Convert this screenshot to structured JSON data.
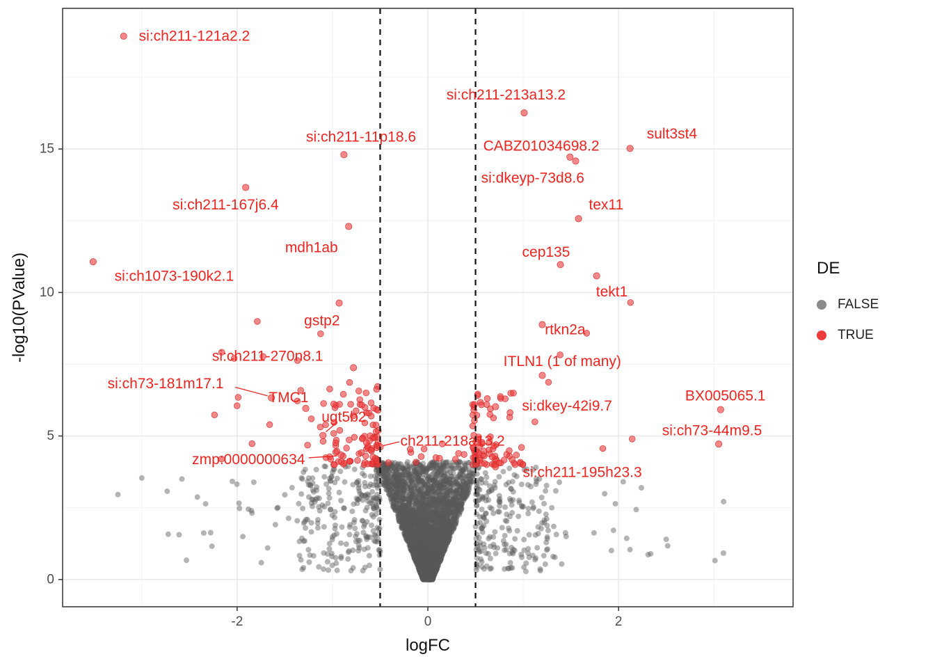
{
  "chart_data": {
    "type": "scatter",
    "subtype": "volcano-plot",
    "title": "",
    "xlabel": "logFC",
    "ylabel": "-log10(PValue)",
    "xlim": [
      -3.83,
      3.83
    ],
    "ylim": [
      -0.95,
      19.9
    ],
    "x_ticks": [
      -2,
      0,
      2
    ],
    "y_ticks": [
      0,
      5,
      10,
      15
    ],
    "grid": {
      "major_x": [
        -2,
        0,
        2
      ],
      "minor_x": [
        -3,
        -1,
        1,
        3
      ],
      "major_y": [
        0,
        5,
        10,
        15
      ],
      "minor_y": [
        2.5,
        7.5,
        12.5,
        17.5
      ]
    },
    "vlines": {
      "values": [
        -0.5,
        0.5
      ],
      "style": "dashed",
      "color": "#111111"
    },
    "legend": {
      "title": "DE",
      "position": "right",
      "entries": [
        {
          "label": "FALSE",
          "color": "#8a8a8a"
        },
        {
          "label": "TRUE",
          "color": "#ee3b3b"
        }
      ]
    },
    "style": {
      "gray_fill": "rgba(88,88,88,0.45)",
      "gray_radius": 4.0,
      "red_fill": "rgba(238,62,62,0.62)",
      "red_stroke": "rgba(205,38,38,0.85)",
      "red_radius": 4.4,
      "label_color": "#ee2420",
      "grid_major": "#e6e6e6",
      "grid_minor": "#f3f3f3",
      "panel_border": "#333333",
      "tick_color": "#333333",
      "tick_label_color": "#4d4d4d"
    },
    "genes": [
      {
        "name": "si:ch211-121a2.2",
        "x": -3.19,
        "y": 18.93,
        "lx": -3.03,
        "ly": 18.93,
        "anchor": "start"
      },
      {
        "name": "si:ch211-213a13.2",
        "x": 1.01,
        "y": 16.26,
        "lx": 0.82,
        "ly": 16.88,
        "anchor": "middle"
      },
      {
        "name": "si:ch211-11p18.6",
        "x": -0.88,
        "y": 14.8,
        "lx": -0.7,
        "ly": 15.42,
        "anchor": "middle"
      },
      {
        "name": "sult3st4",
        "x": 2.12,
        "y": 15.02,
        "lx": 2.56,
        "ly": 15.52,
        "anchor": "middle"
      },
      {
        "name": "CABZ01034698.2",
        "x": 1.49,
        "y": 14.72,
        "lx": 1.19,
        "ly": 15.1,
        "anchor": "middle"
      },
      {
        "name": "si:dkeyp-73d8.6",
        "x": 1.55,
        "y": 14.58,
        "lx": 1.1,
        "ly": 13.98,
        "anchor": "middle"
      },
      {
        "name": "si:ch211-167j6.4",
        "x": -1.91,
        "y": 13.66,
        "lx": -2.12,
        "ly": 13.05,
        "anchor": "middle"
      },
      {
        "name": "tex11",
        "x": 1.58,
        "y": 12.57,
        "lx": 1.87,
        "ly": 13.05,
        "anchor": "middle"
      },
      {
        "name": "mdh1ab",
        "x": -0.83,
        "y": 12.3,
        "lx": -1.22,
        "ly": 11.56,
        "anchor": "middle"
      },
      {
        "name": "si:ch1073-190k2.1",
        "x": -3.51,
        "y": 11.07,
        "lx": -2.66,
        "ly": 10.56,
        "anchor": "middle"
      },
      {
        "name": "cep135",
        "x": 1.39,
        "y": 10.97,
        "lx": 1.24,
        "ly": 11.4,
        "anchor": "middle"
      },
      {
        "name": "tekt1",
        "x": 1.77,
        "y": 10.58,
        "lx": 1.93,
        "ly": 10.02,
        "anchor": "middle"
      },
      {
        "name": "gstp2",
        "x": -0.93,
        "y": 9.63,
        "lx": -1.11,
        "ly": 9.02,
        "anchor": "middle"
      },
      {
        "name": "rtkn2a",
        "x": 1.2,
        "y": 8.88,
        "lx": 1.44,
        "ly": 8.7,
        "anchor": "middle"
      },
      {
        "name": "si:ch211-270n8.1",
        "x": -0.78,
        "y": 7.38,
        "lx": -1.68,
        "ly": 7.78,
        "anchor": "middle"
      },
      {
        "name": "ITLN1 (1 of many)",
        "x": 1.2,
        "y": 7.11,
        "lx": 1.41,
        "ly": 7.6,
        "anchor": "middle"
      },
      {
        "name": "si:ch73-181m17.1",
        "x": -1.64,
        "y": 6.33,
        "lx": -2.75,
        "ly": 6.82,
        "anchor": "middle",
        "leader": [
          -2.02,
          6.7,
          -1.68,
          6.4
        ]
      },
      {
        "name": "TMC1",
        "x": -1.28,
        "y": 5.96,
        "lx": -1.46,
        "ly": 6.33,
        "anchor": "middle"
      },
      {
        "name": "BX005065.1",
        "x": 3.07,
        "y": 5.92,
        "lx": 3.12,
        "ly": 6.4,
        "anchor": "middle"
      },
      {
        "name": "si:dkey-42i9.7",
        "x": 0.71,
        "y": 6.02,
        "lx": 1.46,
        "ly": 6.05,
        "anchor": "middle"
      },
      {
        "name": "ugt5b2",
        "x": -1.1,
        "y": 5.02,
        "lx": -0.88,
        "ly": 5.66,
        "anchor": "middle",
        "leader": [
          -0.95,
          5.48,
          -1.07,
          5.14
        ]
      },
      {
        "name": "ch211-218a13.2",
        "x": -0.5,
        "y": 4.62,
        "lx": 0.26,
        "ly": 4.82,
        "anchor": "middle",
        "leader": [
          -0.3,
          4.8,
          -0.47,
          4.66
        ]
      },
      {
        "name": "zmp:0000000634",
        "x": -0.91,
        "y": 4.34,
        "lx": -1.88,
        "ly": 4.18,
        "anchor": "middle",
        "leader": [
          -1.25,
          4.24,
          -0.95,
          4.31
        ]
      },
      {
        "name": "si:ch73-44m9.5",
        "x": 3.05,
        "y": 4.72,
        "lx": 2.98,
        "ly": 5.18,
        "anchor": "middle"
      },
      {
        "name": "si:ch211-195h23.3",
        "x": 0.71,
        "y": 3.93,
        "lx": 1.62,
        "ly": 3.73,
        "anchor": "middle"
      }
    ],
    "point_clouds": {
      "seed": 1337,
      "gray": {
        "central": {
          "n": 3800,
          "y_max": 4.1,
          "y_power": 1.55,
          "w_base": 0.05,
          "w_slope": 0.125
        },
        "halo": {
          "n": 430,
          "x_min": 0.5,
          "x_max": 1.35,
          "y_min": 0.25,
          "y_max": 3.95
        },
        "far": {
          "n": 58,
          "x_min": 1.2,
          "x_max": 3.35,
          "y_min": 0.45,
          "y_max": 3.6,
          "left_frac": 0.62
        }
      },
      "red": {
        "left_band": {
          "n": 95,
          "x_min": 0.52,
          "x_max": 1.1,
          "y_min": 4.0,
          "y_max": 6.9
        },
        "right_band": {
          "n": 72,
          "x_min": 0.47,
          "x_max": 1.0,
          "y_min": 4.0,
          "y_max": 6.5
        },
        "sparse": {
          "n": 26,
          "x_min": 0.95,
          "x_max": 2.25,
          "y_min": 4.2,
          "y_max": 9.8
        },
        "inner": {
          "n": 22,
          "x_min": -0.45,
          "x_max": 0.75,
          "y_min": 4.05,
          "y_max": 4.9
        }
      },
      "fixed_gray": [
        [
          -3.25,
          2.96
        ],
        [
          -2.05,
          3.42
        ],
        [
          -2.35,
          1.62
        ],
        [
          -1.85,
          2.4
        ],
        [
          -1.68,
          1.1
        ],
        [
          -1.5,
          2.95
        ],
        [
          -1.25,
          3.3
        ],
        [
          -0.95,
          3.52
        ],
        [
          2.12,
          1.04
        ],
        [
          1.45,
          1.5
        ],
        [
          1.3,
          2.5
        ],
        [
          2.5,
          1.4
        ],
        [
          3.1,
          0.92
        ],
        [
          1.05,
          3.3
        ],
        [
          0.95,
          2.2
        ]
      ]
    }
  }
}
